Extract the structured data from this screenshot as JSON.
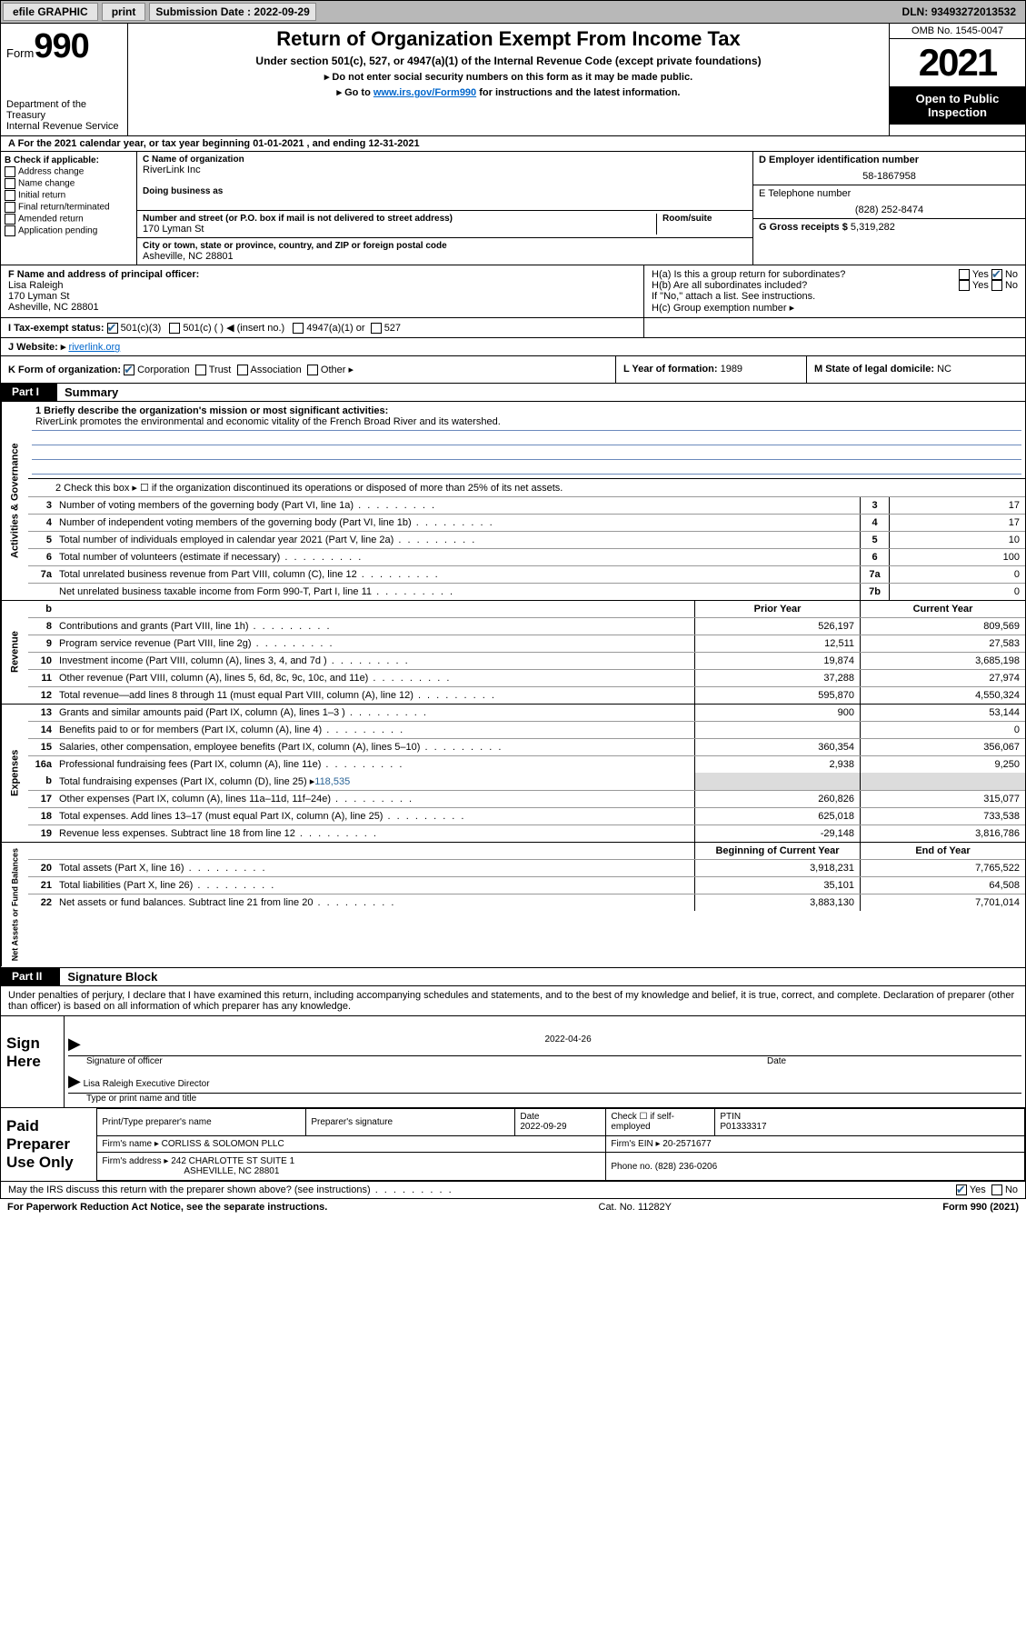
{
  "topbar": {
    "efile": "efile GRAPHIC",
    "print": "print",
    "submission_lbl": "Submission Date :",
    "submission_date": "2022-09-29",
    "dln_lbl": "DLN:",
    "dln": "93493272013532"
  },
  "header": {
    "form_word": "Form",
    "form_no": "990",
    "dept": "Department of the Treasury",
    "irs": "Internal Revenue Service",
    "title": "Return of Organization Exempt From Income Tax",
    "sub": "Under section 501(c), 527, or 4947(a)(1) of the Internal Revenue Code (except private foundations)",
    "line1": "▸ Do not enter social security numbers on this form as it may be made public.",
    "line2_pre": "▸ Go to ",
    "line2_link": "www.irs.gov/Form990",
    "line2_post": " for instructions and the latest information.",
    "omb": "OMB No. 1545-0047",
    "year": "2021",
    "inspect": "Open to Public Inspection"
  },
  "rowA": "A For the 2021 calendar year, or tax year beginning 01-01-2021   , and ending 12-31-2021",
  "checkB": {
    "hdr": "B Check if applicable:",
    "items": [
      "Address change",
      "Name change",
      "Initial return",
      "Final return/terminated",
      "Amended return",
      "Application pending"
    ]
  },
  "nameC": {
    "lbl": "C Name of organization",
    "val": "RiverLink Inc",
    "dba_lbl": "Doing business as"
  },
  "addr": {
    "street_lbl": "Number and street (or P.O. box if mail is not delivered to street address)",
    "room_lbl": "Room/suite",
    "street": "170 Lyman St",
    "city_lbl": "City or town, state or province, country, and ZIP or foreign postal code",
    "city": "Asheville, NC  28801"
  },
  "ein": {
    "lbl": "D Employer identification number",
    "val": "58-1867958"
  },
  "phone": {
    "lbl": "E Telephone number",
    "val": "(828) 252-8474"
  },
  "gross": {
    "lbl": "G Gross receipts $",
    "val": "5,319,282"
  },
  "officerF": {
    "lbl": "F Name and address of principal officer:",
    "name": "Lisa Raleigh",
    "street": "170 Lyman St",
    "city": "Asheville, NC  28801"
  },
  "groupH": {
    "a": "H(a)  Is this a group return for subordinates?",
    "a_yes": "Yes",
    "a_no": "No",
    "b": "H(b)  Are all subordinates included?",
    "b_note": "If \"No,\" attach a list. See instructions.",
    "c": "H(c)  Group exemption number ▸"
  },
  "taxI": {
    "lbl": "I   Tax-exempt status:",
    "opts": [
      "501(c)(3)",
      "501(c) (   ) ◀ (insert no.)",
      "4947(a)(1) or",
      "527"
    ]
  },
  "webJ": {
    "lbl": "J   Website: ▸",
    "val": "riverlink.org"
  },
  "rowK": "K Form of organization:",
  "rowK_opts": [
    "Corporation",
    "Trust",
    "Association",
    "Other ▸"
  ],
  "rowL": {
    "lbl": "L Year of formation:",
    "val": "1989"
  },
  "rowM": {
    "lbl": "M State of legal domicile:",
    "val": "NC"
  },
  "part1": {
    "tab": "Part I",
    "txt": "Summary"
  },
  "vlabels": [
    "Activities & Governance",
    "Revenue",
    "Expenses",
    "Net Assets or Fund Balances"
  ],
  "mission": {
    "q": "1   Briefly describe the organization's mission or most significant activities:",
    "txt": "RiverLink promotes the environmental and economic vitality of the French Broad River and its watershed."
  },
  "line2": "2   Check this box ▸ ☐  if the organization discontinued its operations or disposed of more than 25% of its net assets.",
  "govLines": [
    {
      "n": "3",
      "t": "Number of voting members of the governing body (Part VI, line 1a)",
      "b": "3",
      "v": "17"
    },
    {
      "n": "4",
      "t": "Number of independent voting members of the governing body (Part VI, line 1b)",
      "b": "4",
      "v": "17"
    },
    {
      "n": "5",
      "t": "Total number of individuals employed in calendar year 2021 (Part V, line 2a)",
      "b": "5",
      "v": "10"
    },
    {
      "n": "6",
      "t": "Total number of volunteers (estimate if necessary)",
      "b": "6",
      "v": "100"
    },
    {
      "n": "7a",
      "t": "Total unrelated business revenue from Part VIII, column (C), line 12",
      "b": "7a",
      "v": "0"
    },
    {
      "n": "",
      "t": "Net unrelated business taxable income from Form 990-T, Part I, line 11",
      "b": "7b",
      "v": "0"
    }
  ],
  "colHeaders": {
    "b": "b",
    "prior": "Prior Year",
    "current": "Current Year"
  },
  "revLines": [
    {
      "n": "8",
      "t": "Contributions and grants (Part VIII, line 1h)",
      "p": "526,197",
      "c": "809,569"
    },
    {
      "n": "9",
      "t": "Program service revenue (Part VIII, line 2g)",
      "p": "12,511",
      "c": "27,583"
    },
    {
      "n": "10",
      "t": "Investment income (Part VIII, column (A), lines 3, 4, and 7d )",
      "p": "19,874",
      "c": "3,685,198"
    },
    {
      "n": "11",
      "t": "Other revenue (Part VIII, column (A), lines 5, 6d, 8c, 9c, 10c, and 11e)",
      "p": "37,288",
      "c": "27,974"
    },
    {
      "n": "12",
      "t": "Total revenue—add lines 8 through 11 (must equal Part VIII, column (A), line 12)",
      "p": "595,870",
      "c": "4,550,324"
    }
  ],
  "expLines": [
    {
      "n": "13",
      "t": "Grants and similar amounts paid (Part IX, column (A), lines 1–3 )",
      "p": "900",
      "c": "53,144"
    },
    {
      "n": "14",
      "t": "Benefits paid to or for members (Part IX, column (A), line 4)",
      "p": "",
      "c": "0"
    },
    {
      "n": "15",
      "t": "Salaries, other compensation, employee benefits (Part IX, column (A), lines 5–10)",
      "p": "360,354",
      "c": "356,067"
    },
    {
      "n": "16a",
      "t": "Professional fundraising fees (Part IX, column (A), line 11e)",
      "p": "2,938",
      "c": "9,250"
    }
  ],
  "exp16b": {
    "n": "b",
    "t": "Total fundraising expenses (Part IX, column (D), line 25) ▸",
    "v": "118,535"
  },
  "expLines2": [
    {
      "n": "17",
      "t": "Other expenses (Part IX, column (A), lines 11a–11d, 11f–24e)",
      "p": "260,826",
      "c": "315,077"
    },
    {
      "n": "18",
      "t": "Total expenses. Add lines 13–17 (must equal Part IX, column (A), line 25)",
      "p": "625,018",
      "c": "733,538"
    },
    {
      "n": "19",
      "t": "Revenue less expenses. Subtract line 18 from line 12",
      "p": "-29,148",
      "c": "3,816,786"
    }
  ],
  "netHeaders": {
    "begin": "Beginning of Current Year",
    "end": "End of Year"
  },
  "netLines": [
    {
      "n": "20",
      "t": "Total assets (Part X, line 16)",
      "p": "3,918,231",
      "c": "7,765,522"
    },
    {
      "n": "21",
      "t": "Total liabilities (Part X, line 26)",
      "p": "35,101",
      "c": "64,508"
    },
    {
      "n": "22",
      "t": "Net assets or fund balances. Subtract line 21 from line 20",
      "p": "3,883,130",
      "c": "7,701,014"
    }
  ],
  "part2": {
    "tab": "Part II",
    "txt": "Signature Block"
  },
  "penalties": "Under penalties of perjury, I declare that I have examined this return, including accompanying schedules and statements, and to the best of my knowledge and belief, it is true, correct, and complete. Declaration of preparer (other than officer) is based on all information of which preparer has any knowledge.",
  "sign": {
    "here": "Sign Here",
    "sig_lbl": "Signature of officer",
    "date_lbl": "Date",
    "date": "2022-04-26",
    "name": "Lisa Raleigh Executive Director",
    "name_lbl": "Type or print name and title"
  },
  "preparer": {
    "lbl": "Paid Preparer Use Only",
    "name_lbl": "Print/Type preparer's name",
    "sig_lbl": "Preparer's signature",
    "date_lbl": "Date",
    "date": "2022-09-29",
    "self_lbl": "Check ☐ if self-employed",
    "ptin_lbl": "PTIN",
    "ptin": "P01333317",
    "firm_name_lbl": "Firm's name   ▸",
    "firm_name": "CORLISS & SOLOMON PLLC",
    "firm_ein_lbl": "Firm's EIN ▸",
    "firm_ein": "20-2571677",
    "firm_addr_lbl": "Firm's address ▸",
    "firm_addr1": "242 CHARLOTTE ST SUITE 1",
    "firm_addr2": "ASHEVILLE, NC  28801",
    "phone_lbl": "Phone no.",
    "phone": "(828) 236-0206"
  },
  "mayIRS": {
    "q": "May the IRS discuss this return with the preparer shown above? (see instructions)",
    "yes": "Yes",
    "no": "No"
  },
  "footer": {
    "l": "For Paperwork Reduction Act Notice, see the separate instructions.",
    "c": "Cat. No. 11282Y",
    "r": "Form 990 (2021)"
  },
  "colors": {
    "link": "#0066cc",
    "check": "#2a6496",
    "underline": "#6b8abc",
    "grey": "#dcdcdc"
  }
}
